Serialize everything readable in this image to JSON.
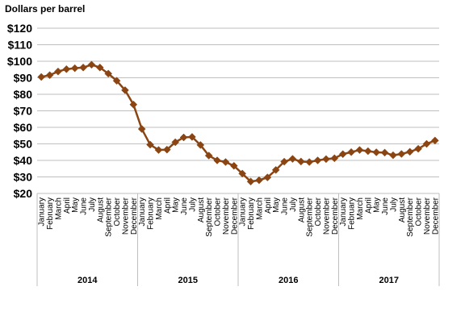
{
  "chart_data": {
    "type": "line",
    "title": "",
    "ylabel": "Dollars per barrel",
    "xlabel": "",
    "ylim": [
      20,
      120
    ],
    "y_ticks": [
      "$20",
      "$30",
      "$40",
      "$50",
      "$60",
      "$70",
      "$80",
      "$90",
      "$100",
      "$110",
      "$120"
    ],
    "y_tick_values": [
      20,
      30,
      40,
      50,
      60,
      70,
      80,
      90,
      100,
      110,
      120
    ],
    "grid": true,
    "color": "#8B4513",
    "months": [
      "January",
      "February",
      "March",
      "April",
      "May",
      "June",
      "July",
      "August",
      "September",
      "October",
      "November",
      "December"
    ],
    "years": [
      "2014",
      "2015",
      "2016",
      "2017"
    ],
    "series": [
      {
        "values": [
          90.5,
          91.6,
          93.8,
          95.2,
          95.8,
          96.2,
          97.9,
          96.2,
          92.5,
          88.2,
          82.5,
          73.8,
          59.0,
          49.5,
          46.3,
          46.5,
          51.0,
          53.9,
          54.2,
          49.3,
          42.9,
          40.0,
          39.0,
          36.7,
          32.0,
          27.2,
          28.0,
          29.7,
          34.2,
          39.2,
          40.9,
          39.3,
          39.0,
          40.0,
          40.8,
          41.3,
          43.8,
          45.0,
          46.3,
          45.6,
          44.9,
          44.7,
          43.1,
          43.9,
          45.2,
          47.0,
          50.0,
          52.0
        ]
      }
    ]
  }
}
